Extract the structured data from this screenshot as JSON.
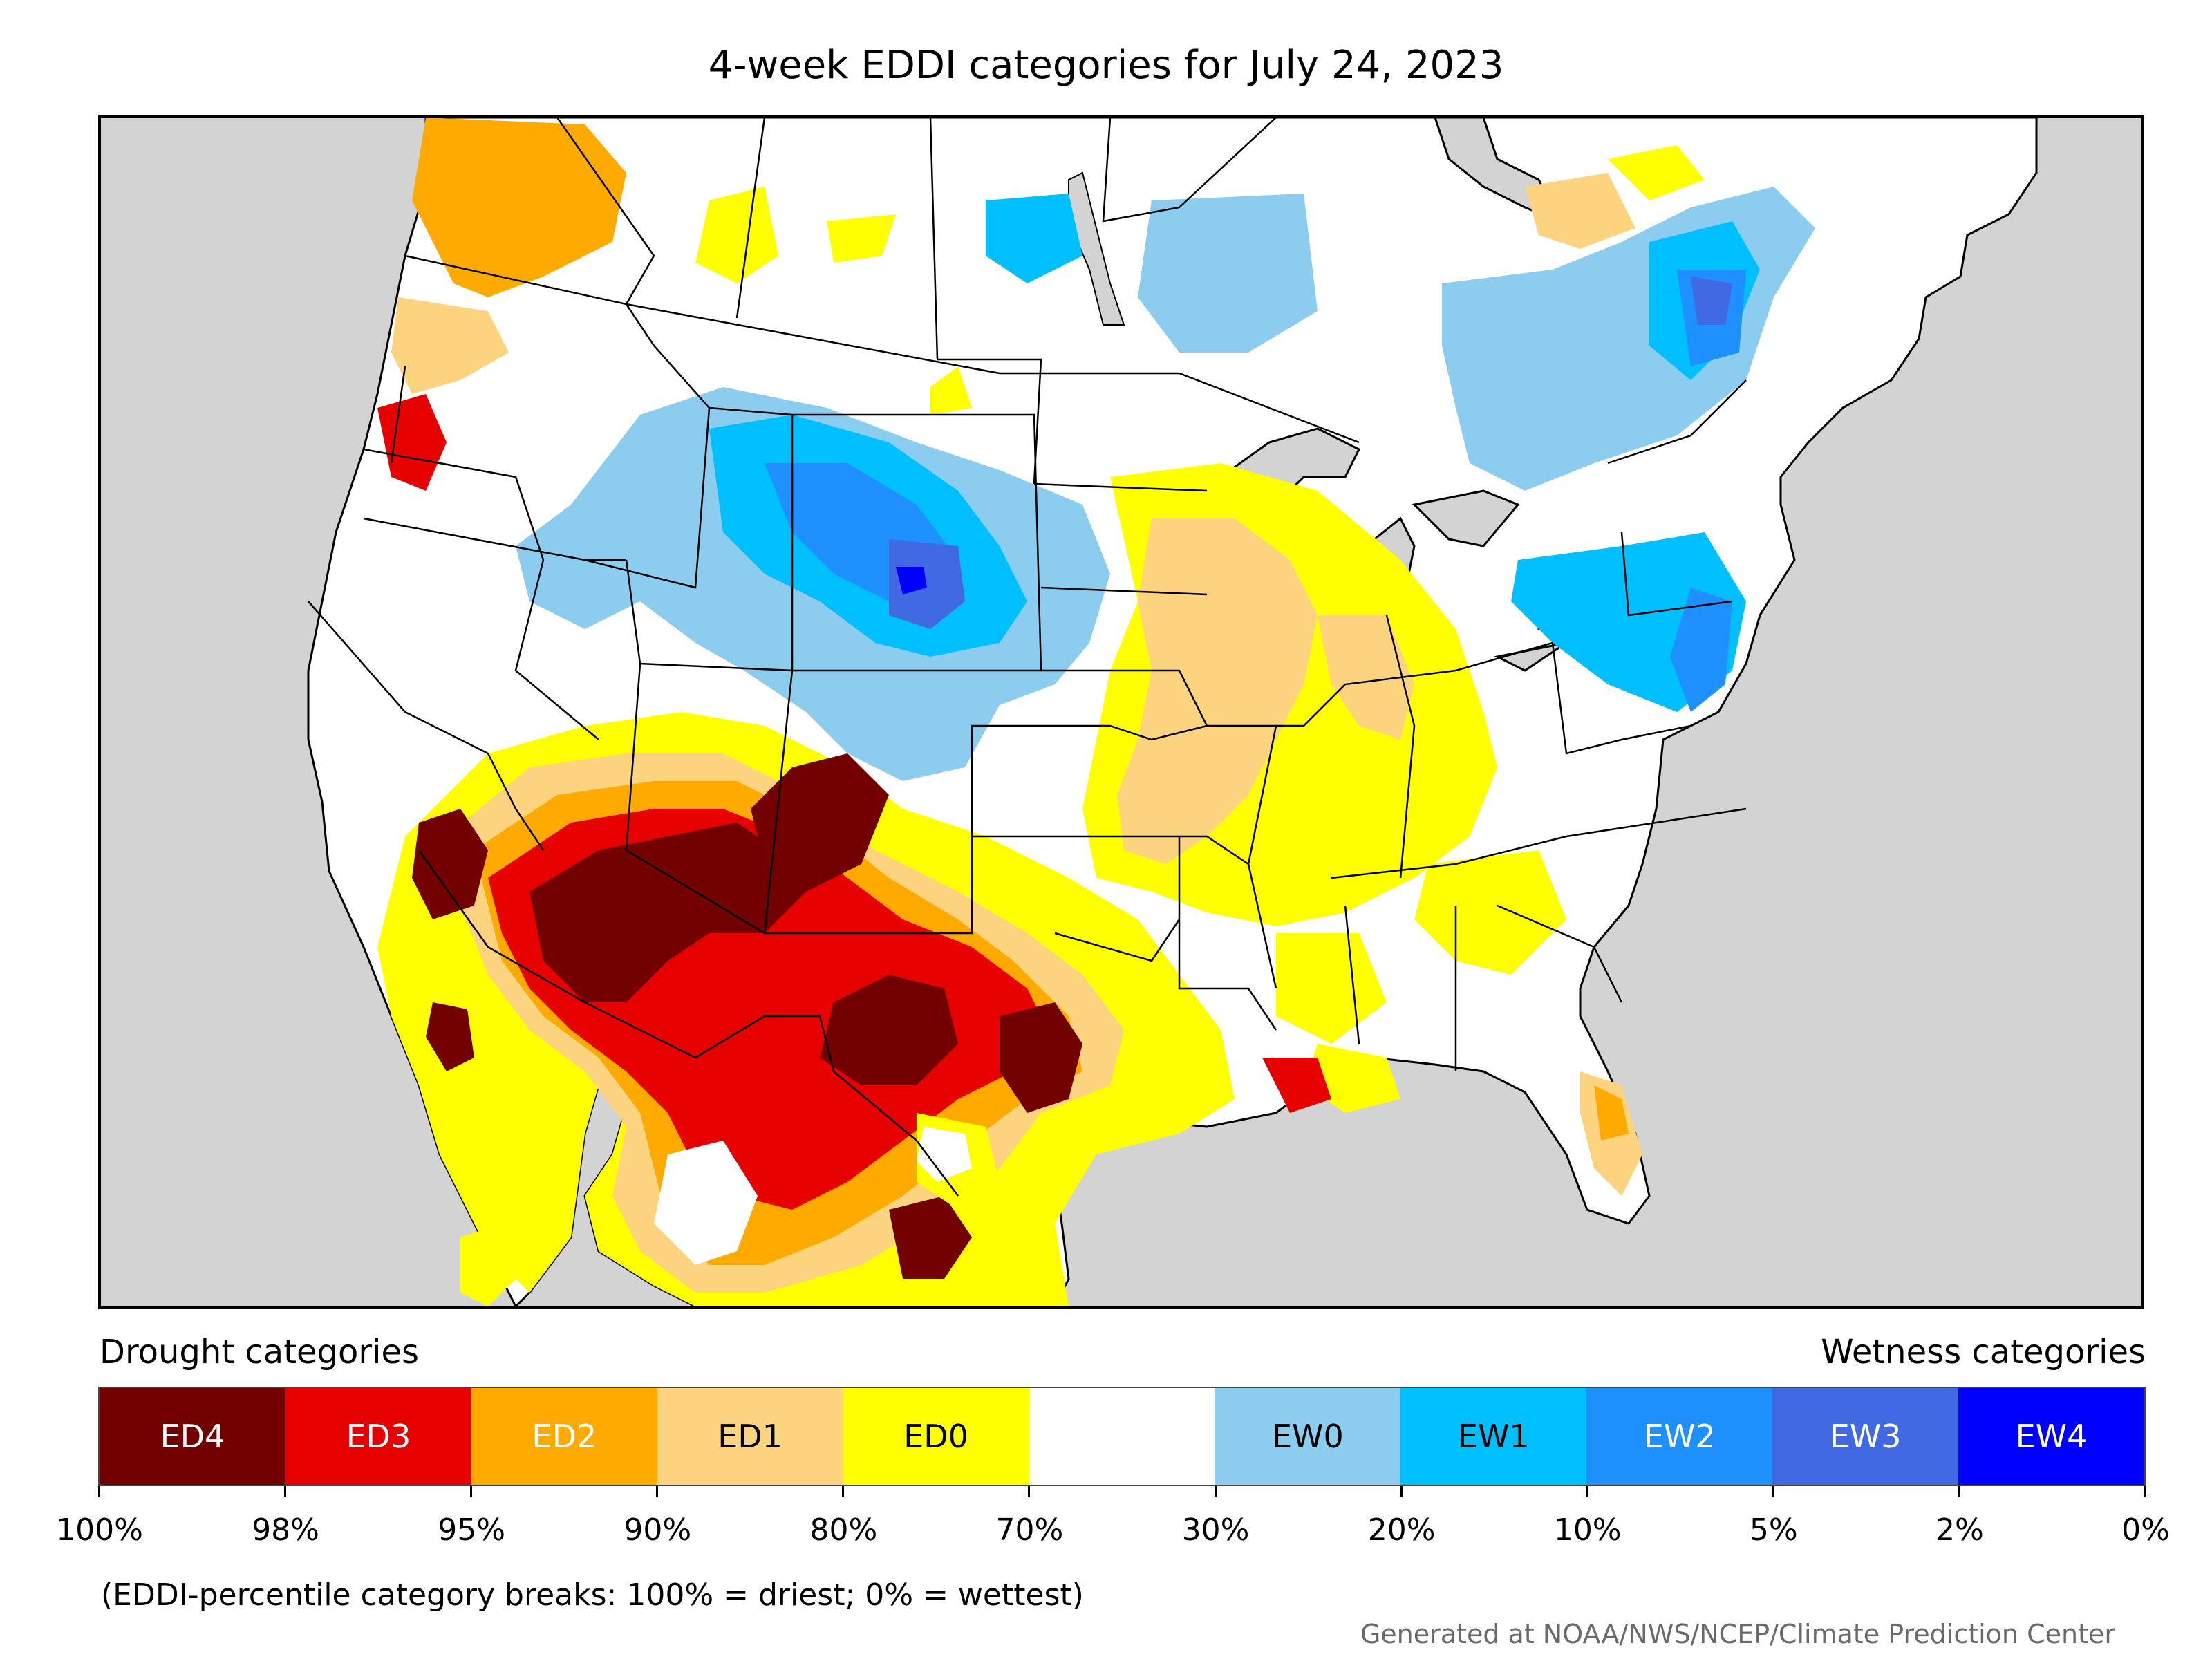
{
  "title": "4-week EDDI categories for July 24, 2023",
  "legend": {
    "drought_heading": "Drought categories",
    "wetness_heading": "Wetness categories",
    "categories": [
      {
        "label": "ED4",
        "color": "#730000",
        "text_color": "#ffffff"
      },
      {
        "label": "ED3",
        "color": "#e60000",
        "text_color": "#ffffff"
      },
      {
        "label": "ED2",
        "color": "#ffaa00",
        "text_color": "#ffffff"
      },
      {
        "label": "ED1",
        "color": "#fcd37f",
        "text_color": "#000000"
      },
      {
        "label": "ED0",
        "color": "#ffff00",
        "text_color": "#000000"
      },
      {
        "label": "",
        "color": "#ffffff",
        "text_color": "#000000"
      },
      {
        "label": "EW0",
        "color": "#8ccdef",
        "text_color": "#000000"
      },
      {
        "label": "EW1",
        "color": "#00bfff",
        "text_color": "#000000"
      },
      {
        "label": "EW2",
        "color": "#1e90ff",
        "text_color": "#ffffff"
      },
      {
        "label": "EW3",
        "color": "#4169e1",
        "text_color": "#ffffff"
      },
      {
        "label": "EW4",
        "color": "#0000ff",
        "text_color": "#ffffff"
      }
    ],
    "tick_labels": [
      "100%",
      "98%",
      "95%",
      "90%",
      "80%",
      "70%",
      "30%",
      "20%",
      "10%",
      "5%",
      "2%",
      "0%"
    ],
    "note": "(EDDI-percentile category breaks: 100% = driest; 0% = wettest)"
  },
  "credit": "Generated at NOAA/NWS/NCEP/Climate Prediction Center",
  "map_colors": {
    "ocean": "#d3d3d3",
    "land": "#ffffff",
    "boundary": "#000000"
  }
}
